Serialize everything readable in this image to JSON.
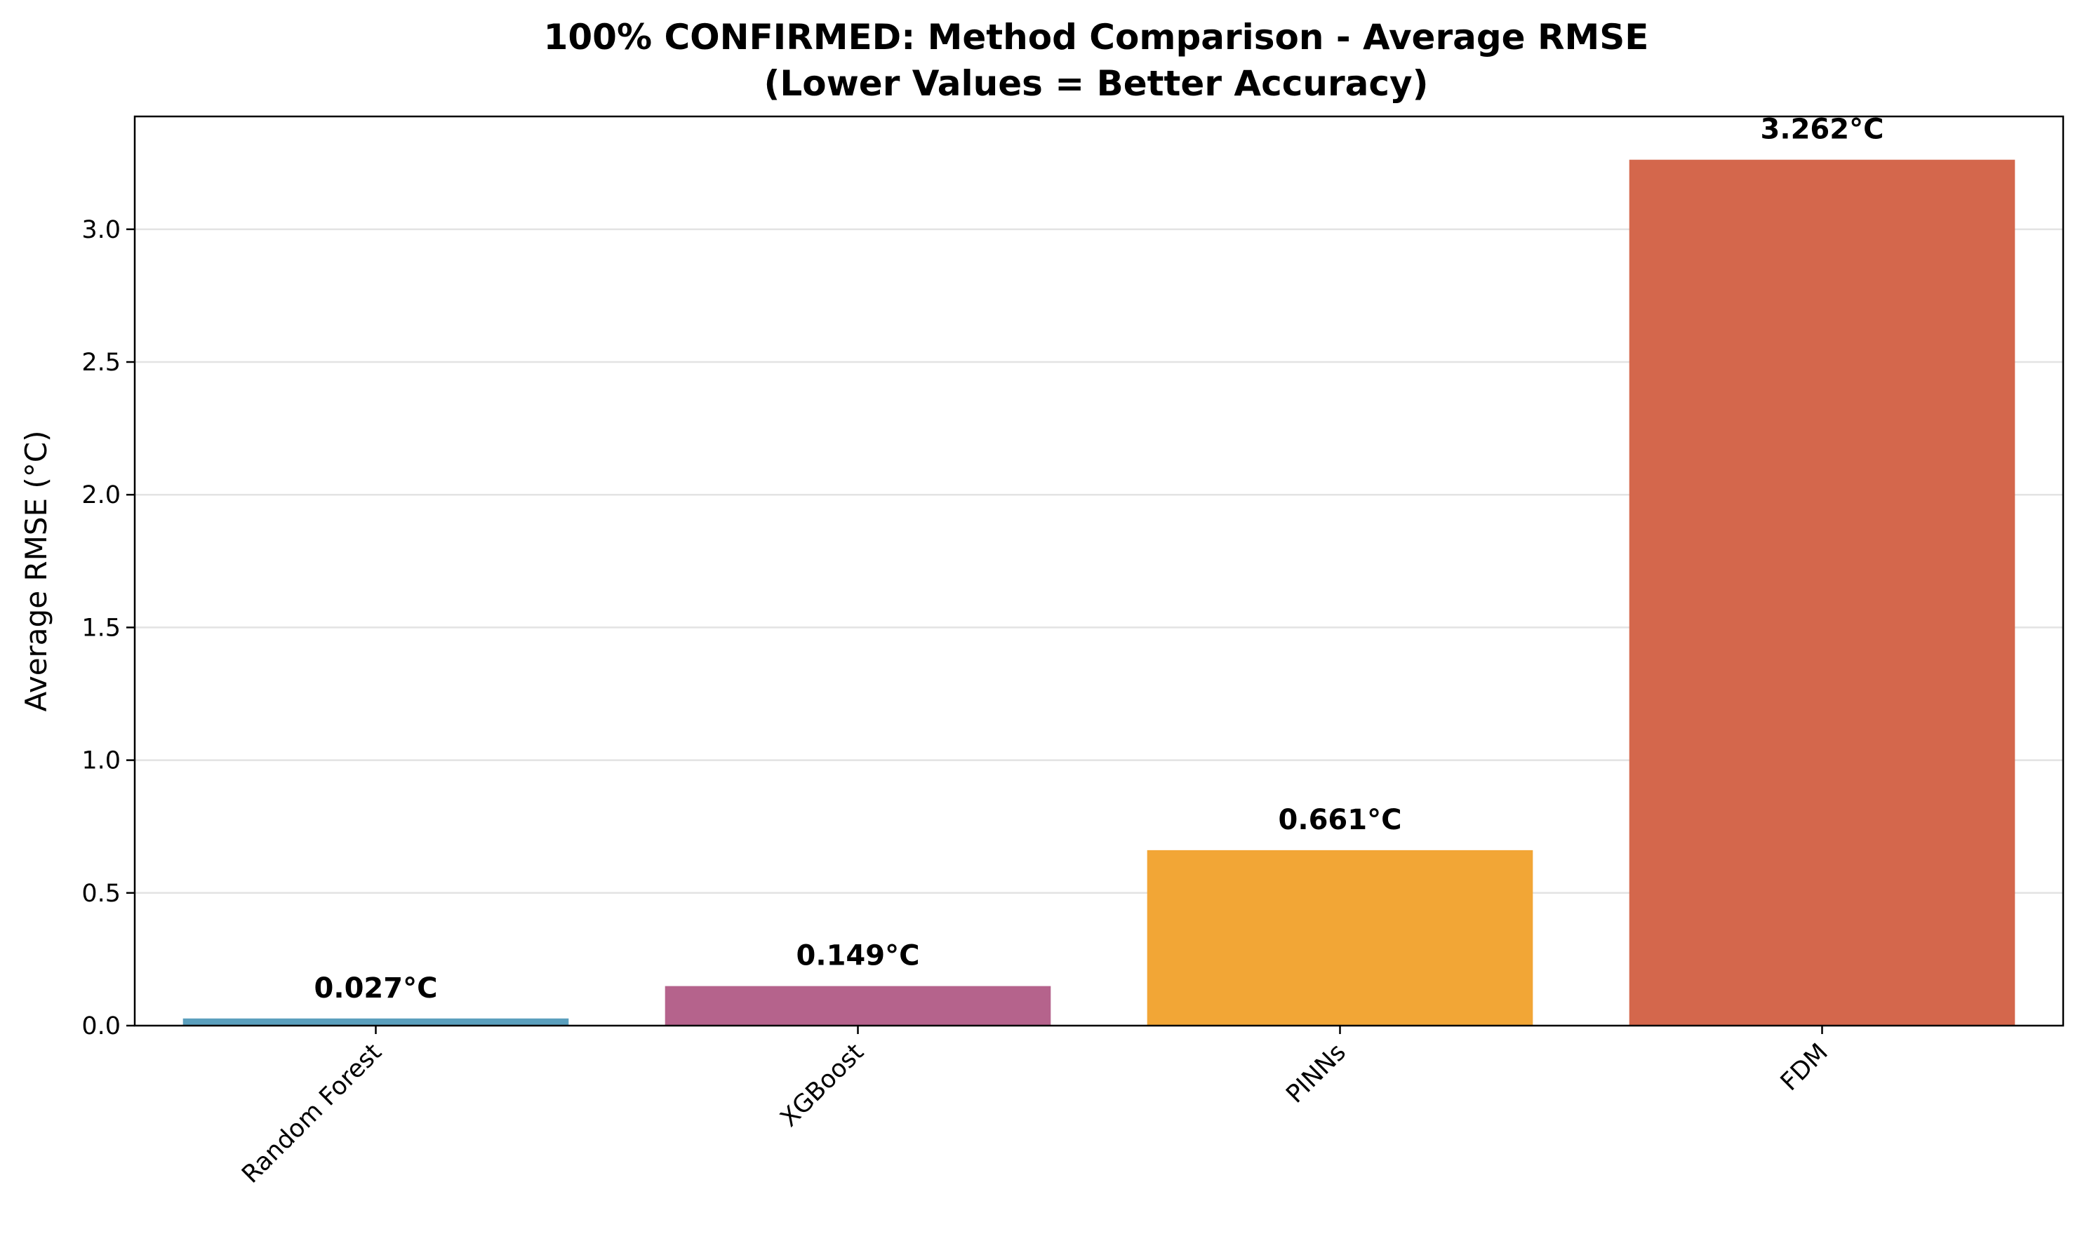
{
  "chart_data": {
    "type": "bar",
    "title": "100% CONFIRMED: Method Comparison - Average RMSE",
    "subtitle": "(Lower Values = Better Accuracy)",
    "xlabel": "",
    "ylabel": "Average RMSE (°C)",
    "categories": [
      "Random Forest",
      "XGBoost",
      "PINNs",
      "FDM"
    ],
    "values": [
      0.027,
      0.149,
      0.661,
      3.262
    ],
    "value_labels": [
      "0.027°C",
      "0.149°C",
      "0.661°C",
      "3.262°C"
    ],
    "colors": [
      "#5a9fbd",
      "#b5638c",
      "#f2a636",
      "#d4674c"
    ],
    "ylim": [
      0,
      3.425
    ],
    "yticks": [
      0.0,
      0.5,
      1.0,
      1.5,
      2.0,
      2.5,
      3.0
    ],
    "ytick_labels": [
      "0.0",
      "0.5",
      "1.0",
      "1.5",
      "2.0",
      "2.5",
      "3.0"
    ],
    "grid": "y-major",
    "legend": "none"
  }
}
